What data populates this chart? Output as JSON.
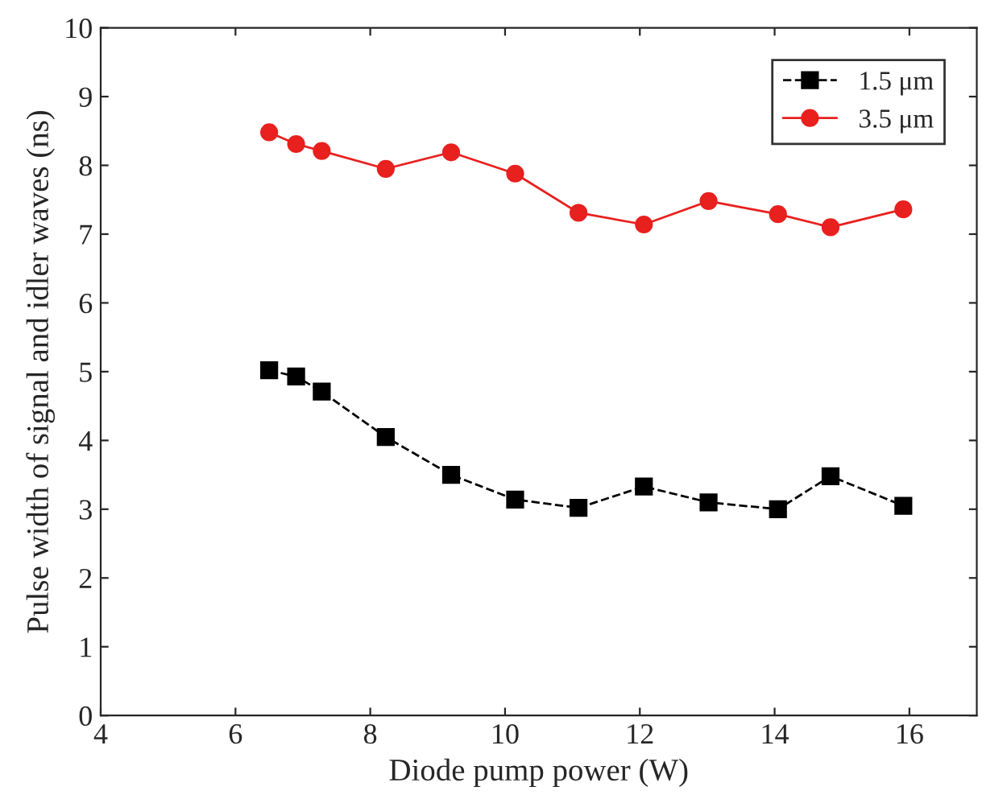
{
  "chart_data": {
    "type": "line",
    "xlabel": "Diode pump power (W)",
    "ylabel": "Pulse width of signal and idler waves (ns)",
    "x": [
      6.5,
      6.9,
      7.28,
      8.23,
      9.2,
      10.15,
      11.09,
      12.06,
      13.02,
      14.05,
      14.83,
      15.91
    ],
    "series": [
      {
        "name": "1.5 μm",
        "color": "#000000",
        "marker": "square",
        "line_style": "dashed",
        "values": [
          5.02,
          4.93,
          4.71,
          4.05,
          3.5,
          3.14,
          3.02,
          3.33,
          3.1,
          3.0,
          3.48,
          3.05
        ]
      },
      {
        "name": "3.5 μm",
        "color": "#e8201e",
        "marker": "circle",
        "line_style": "solid",
        "values": [
          8.48,
          8.31,
          8.21,
          7.95,
          8.19,
          7.88,
          7.31,
          7.14,
          7.48,
          7.29,
          7.1,
          7.36
        ]
      }
    ],
    "xlim": [
      4,
      17
    ],
    "xticks": [
      4,
      6,
      8,
      10,
      12,
      14,
      16
    ],
    "ylim": [
      0,
      10
    ],
    "yticks": [
      0,
      1,
      2,
      3,
      4,
      5,
      6,
      7,
      8,
      9,
      10
    ],
    "legend": "top right",
    "grid": false
  }
}
